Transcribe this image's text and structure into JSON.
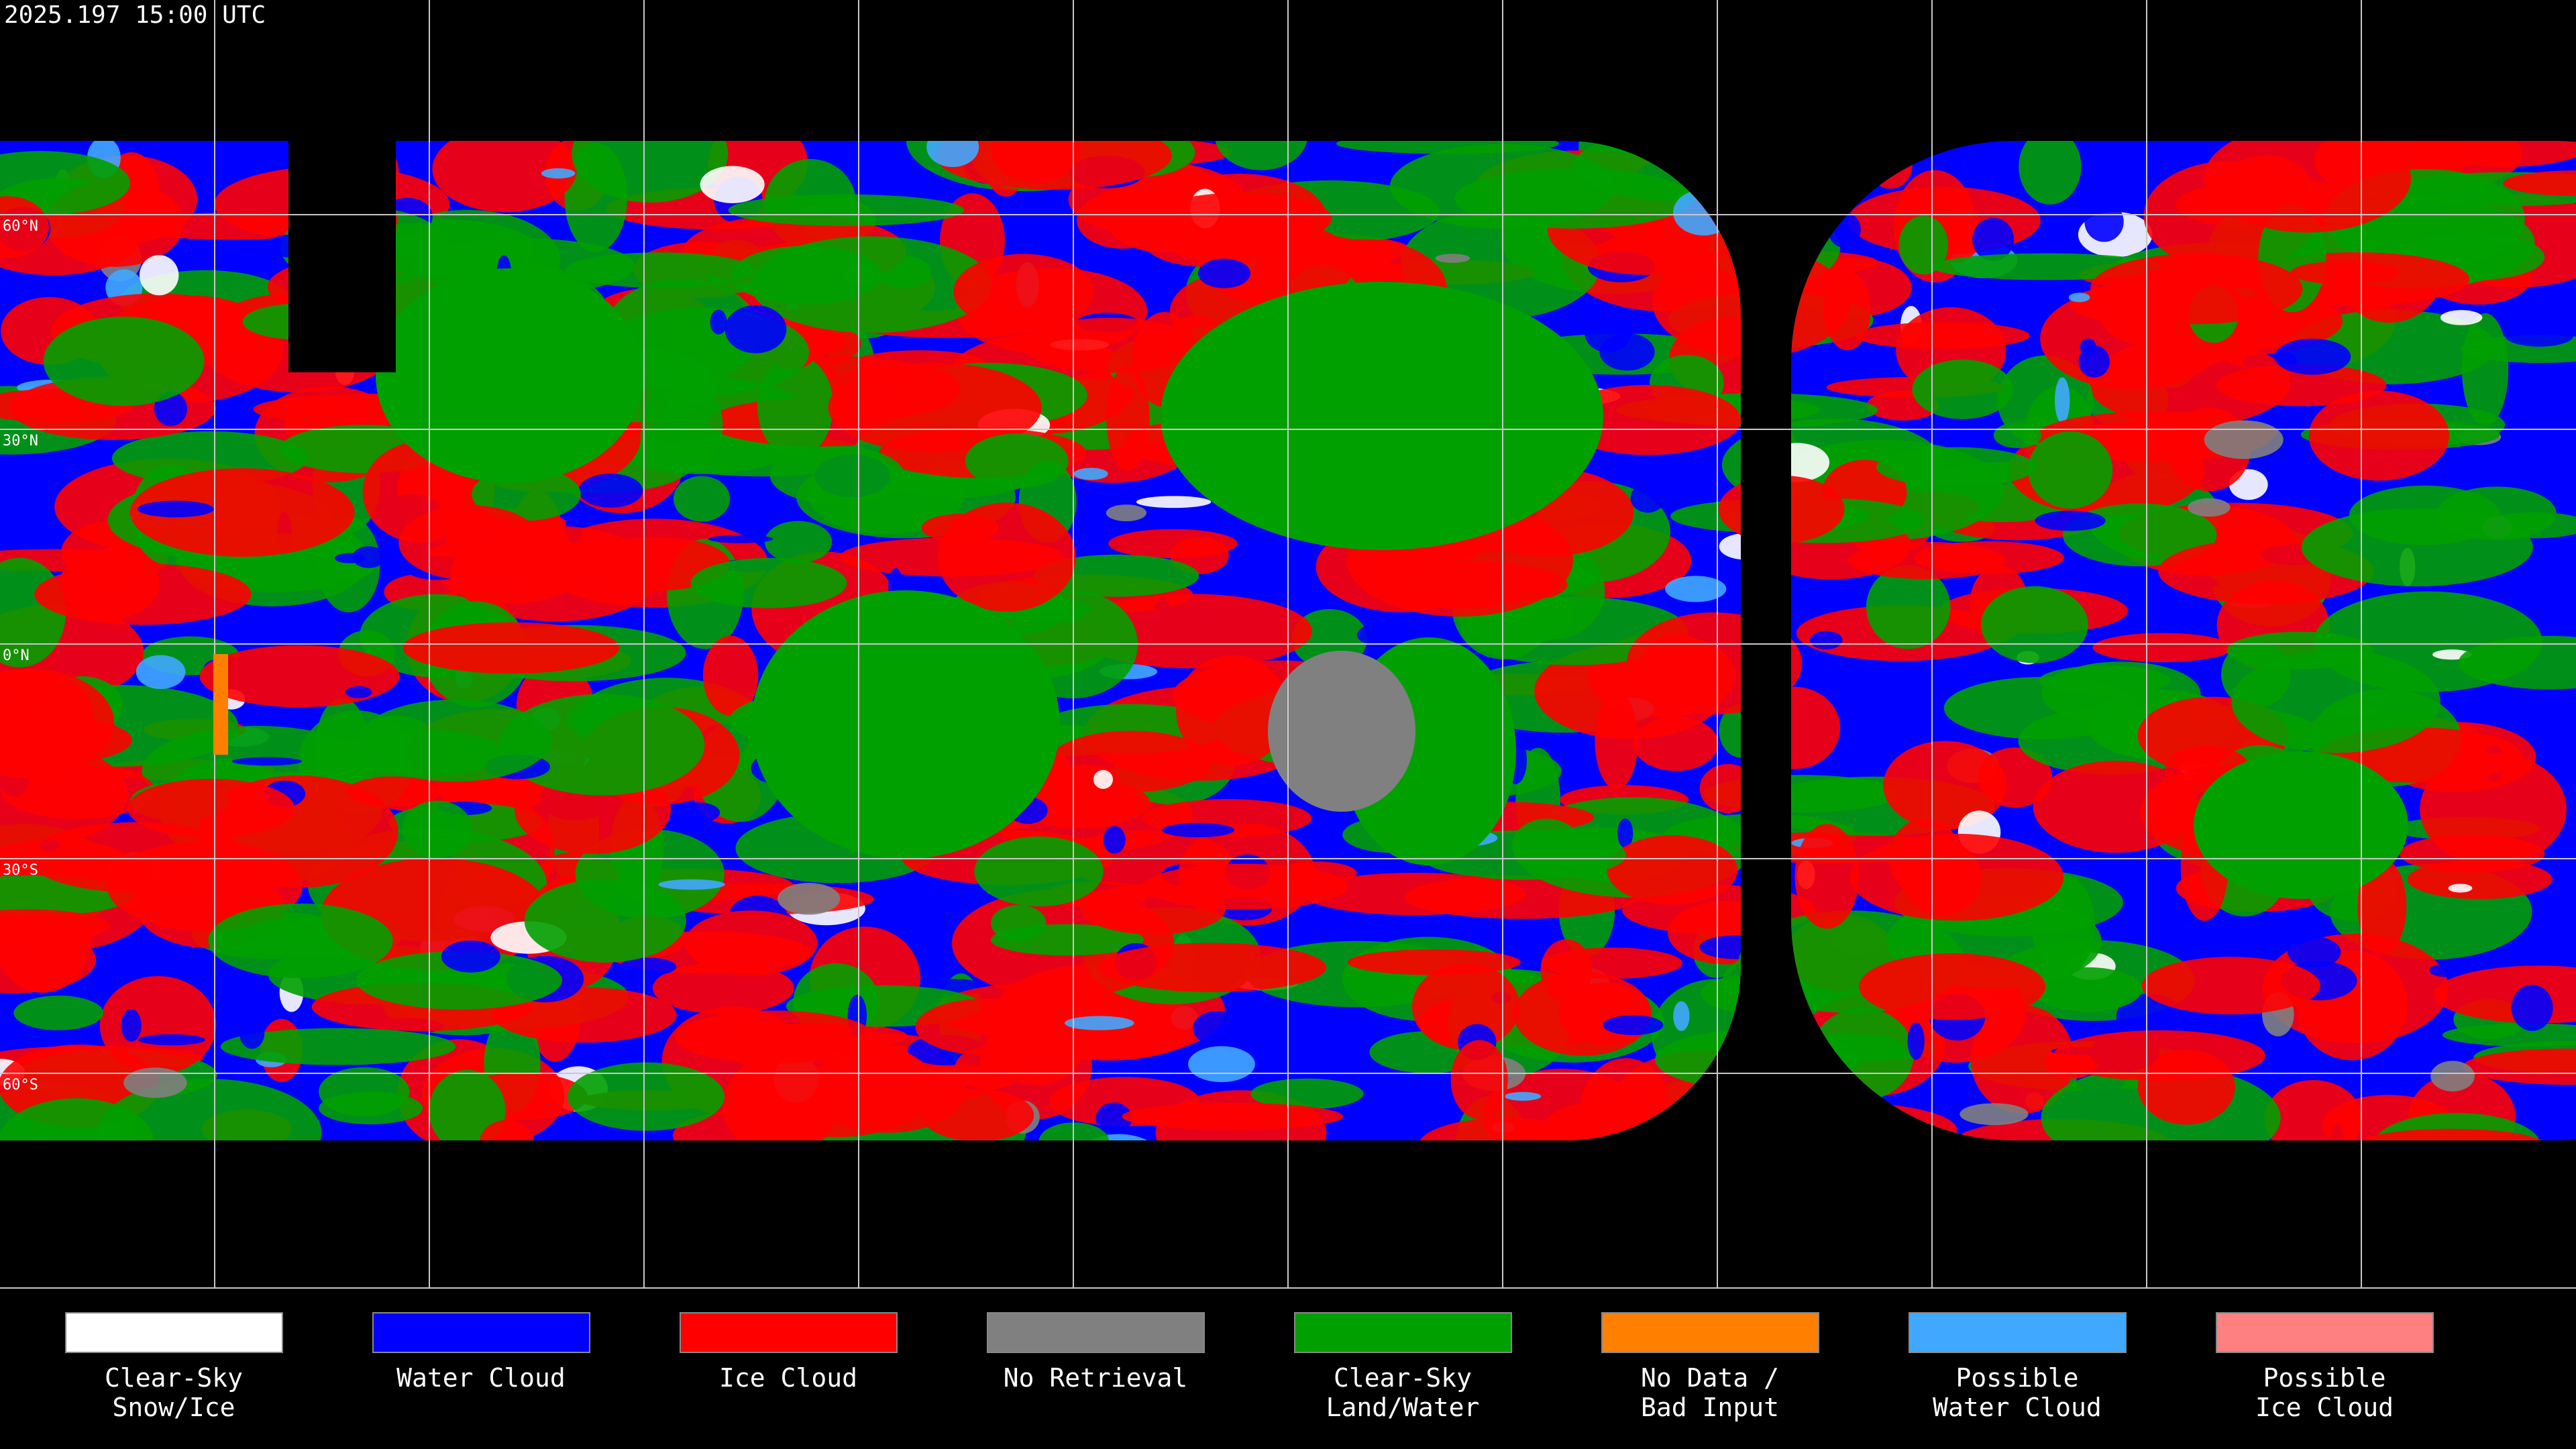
{
  "header": {
    "timestamp": "2025.197 15:00 UTC"
  },
  "map": {
    "lat_labels": [
      "60°N",
      "30°N",
      "0°N",
      "30°S",
      "60°S"
    ]
  },
  "legend": [
    {
      "label": [
        "Clear-Sky",
        "Snow/Ice"
      ],
      "color": "#ffffff"
    },
    {
      "label": [
        "Water Cloud"
      ],
      "color": "#0000ff"
    },
    {
      "label": [
        "Ice Cloud"
      ],
      "color": "#ff0000"
    },
    {
      "label": [
        "No Retrieval"
      ],
      "color": "#808080"
    },
    {
      "label": [
        "Clear-Sky",
        "Land/Water"
      ],
      "color": "#00a000"
    },
    {
      "label": [
        "No Data /",
        "Bad Input"
      ],
      "color": "#ff8000"
    },
    {
      "label": [
        "Possible",
        "Water Cloud"
      ],
      "color": "#40a8ff"
    },
    {
      "label": [
        "Possible",
        "Ice Cloud"
      ],
      "color": "#ff8080"
    }
  ]
}
